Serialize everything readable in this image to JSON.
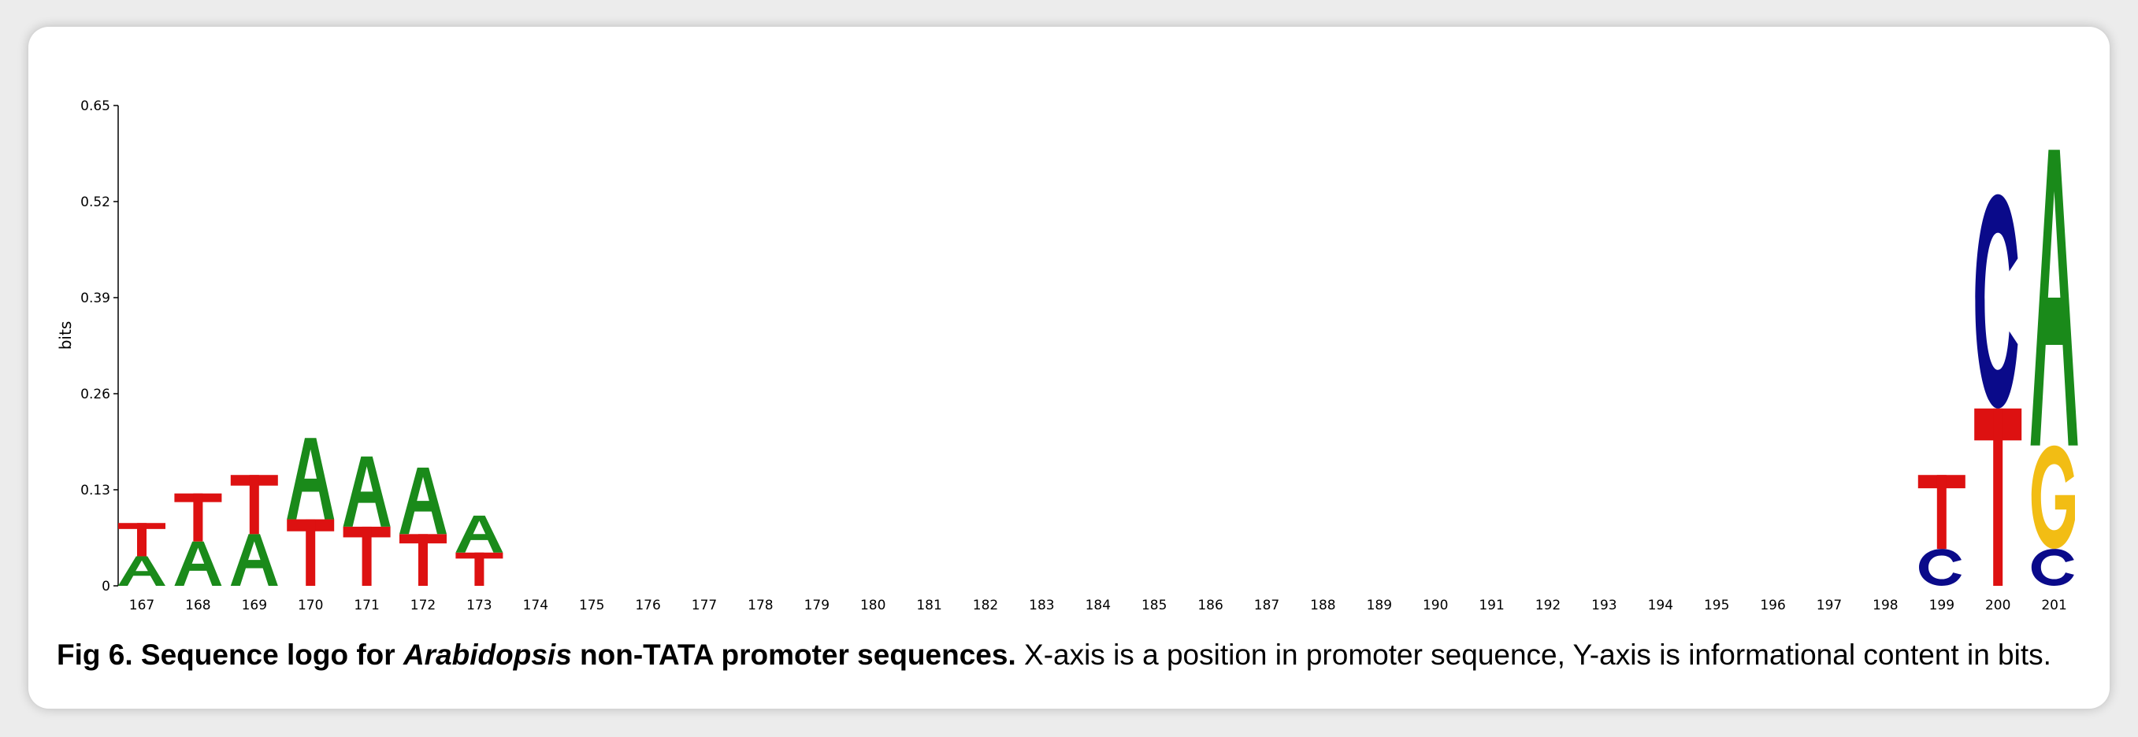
{
  "chart_data": {
    "type": "sequence_logo",
    "ylabel": "bits",
    "ylim": [
      0,
      0.65
    ],
    "y_ticks": [
      "0",
      "0.13",
      "0.26",
      "0.39",
      "0.52",
      "0.65"
    ],
    "positions": [
      167,
      168,
      169,
      170,
      171,
      172,
      173,
      174,
      175,
      176,
      177,
      178,
      179,
      180,
      181,
      182,
      183,
      184,
      185,
      186,
      187,
      188,
      189,
      190,
      191,
      192,
      193,
      194,
      195,
      196,
      197,
      198,
      199,
      200,
      201
    ],
    "stacks": [
      {
        "position": 167,
        "letters": [
          {
            "base": "A",
            "bits": 0.04
          },
          {
            "base": "T",
            "bits": 0.045
          }
        ]
      },
      {
        "position": 168,
        "letters": [
          {
            "base": "A",
            "bits": 0.06
          },
          {
            "base": "T",
            "bits": 0.065
          }
        ]
      },
      {
        "position": 169,
        "letters": [
          {
            "base": "A",
            "bits": 0.07
          },
          {
            "base": "T",
            "bits": 0.08
          }
        ]
      },
      {
        "position": 170,
        "letters": [
          {
            "base": "T",
            "bits": 0.09
          },
          {
            "base": "A",
            "bits": 0.11
          }
        ]
      },
      {
        "position": 171,
        "letters": [
          {
            "base": "T",
            "bits": 0.08
          },
          {
            "base": "A",
            "bits": 0.095
          }
        ]
      },
      {
        "position": 172,
        "letters": [
          {
            "base": "T",
            "bits": 0.07
          },
          {
            "base": "A",
            "bits": 0.09
          }
        ]
      },
      {
        "position": 173,
        "letters": [
          {
            "base": "T",
            "bits": 0.045
          },
          {
            "base": "A",
            "bits": 0.05
          }
        ]
      },
      {
        "position": 199,
        "letters": [
          {
            "base": "C",
            "bits": 0.05
          },
          {
            "base": "T",
            "bits": 0.1
          }
        ]
      },
      {
        "position": 200,
        "letters": [
          {
            "base": "T",
            "bits": 0.24
          },
          {
            "base": "C",
            "bits": 0.29
          }
        ]
      },
      {
        "position": 201,
        "letters": [
          {
            "base": "C",
            "bits": 0.05
          },
          {
            "base": "G",
            "bits": 0.14
          },
          {
            "base": "A",
            "bits": 0.4
          }
        ]
      }
    ],
    "base_colors": {
      "A": "#1a8a1a",
      "T": "#dd1111",
      "C": "#0a0a8a",
      "G": "#f2bd14"
    }
  },
  "caption": {
    "label": "Fig 6.",
    "title_pre": "Sequence logo for ",
    "title_italic": "Arabidopsis",
    "title_post": " non-TATA promoter sequences.",
    "body": " X-axis is a position in promoter sequence, Y-axis is informational content in bits."
  }
}
